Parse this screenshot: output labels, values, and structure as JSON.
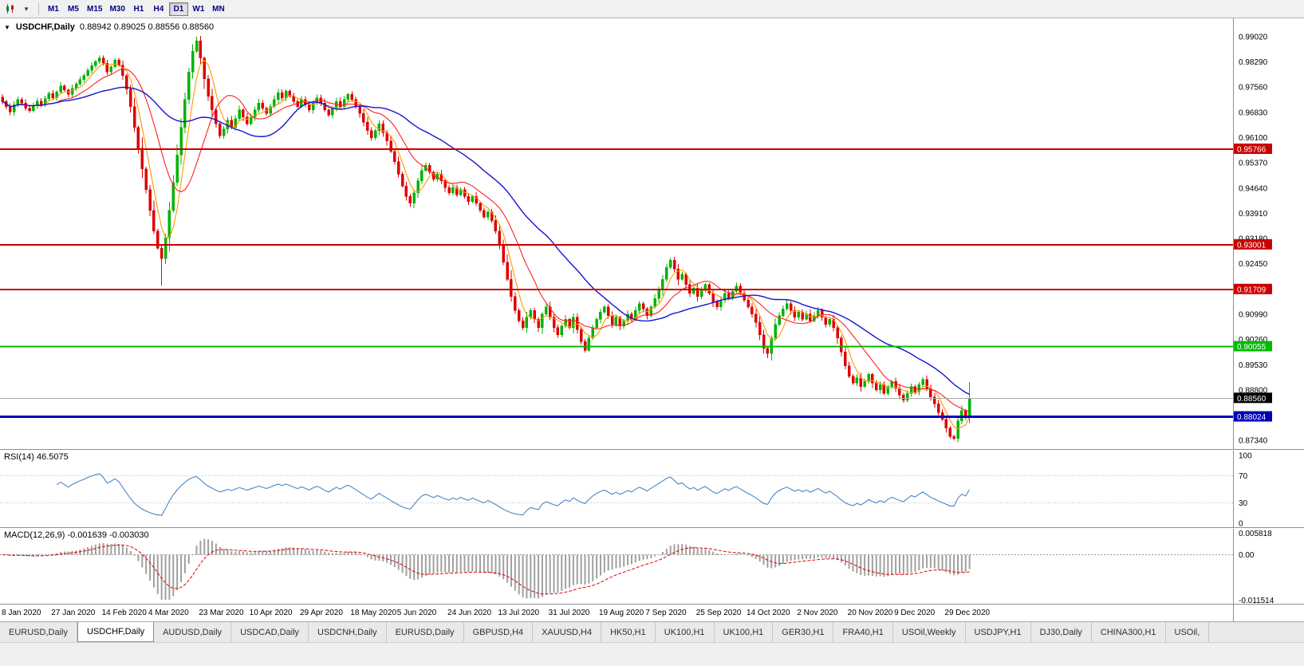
{
  "toolbar": {
    "timeframes": [
      "M1",
      "M5",
      "M15",
      "M30",
      "H1",
      "H4",
      "D1",
      "W1",
      "MN"
    ],
    "active_timeframe": "D1"
  },
  "icons": {
    "toolbar": [
      "candlestick-chart-icon",
      "caret-down-icon"
    ],
    "chart_collapse": "triangle-down-icon"
  },
  "chart_header": {
    "symbol": "USDCHF,Daily",
    "ohlc": "0.88942 0.89025 0.88556 0.88560"
  },
  "tabs": {
    "items": [
      "EURUSD,Daily",
      "USDCHF,Daily",
      "AUDUSD,Daily",
      "USDCAD,Daily",
      "USDCNH,Daily",
      "EURUSD,Daily",
      "GBPUSD,H4",
      "XAUUSD,H4",
      "HK50,H1",
      "UK100,H1",
      "UK100,H1",
      "GER30,H1",
      "FRA40,H1",
      "USOil,Weekly",
      "USDJPY,H1",
      "DJ30,Daily",
      "CHINA300,H1",
      "USOil,"
    ],
    "active_index": 1
  },
  "chart_data": {
    "type": "candlestick",
    "title": "USDCHF,Daily",
    "last_ohlc": {
      "open": 0.88942,
      "high": 0.89025,
      "low": 0.88556,
      "close": 0.8856
    },
    "price_range": [
      0.8709,
      0.9955
    ],
    "up_color": "#00b300",
    "down_color": "#dd0000",
    "y_axis_ticks": [
      "0.99020",
      "0.98290",
      "0.97560",
      "0.96830",
      "0.96100",
      "0.95370",
      "0.94640",
      "0.93910",
      "0.93180",
      "0.92450",
      "0.91720",
      "0.90990",
      "0.90260",
      "0.89530",
      "0.88800",
      "0.88070",
      "0.87340"
    ],
    "x_labels": [
      "8 Jan 2020",
      "27 Jan 2020",
      "14 Feb 2020",
      "4 Mar 2020",
      "23 Mar 2020",
      "10 Apr 2020",
      "29 Apr 2020",
      "18 May 2020",
      "5 Jun 2020",
      "24 Jun 2020",
      "13 Jul 2020",
      "31 Jul 2020",
      "19 Aug 2020",
      "7 Sep 2020",
      "25 Sep 2020",
      "14 Oct 2020",
      "2 Nov 2020",
      "20 Nov 2020",
      "9 Dec 2020",
      "29 Dec 2020"
    ],
    "closes": [
      0.9715,
      0.97,
      0.9685,
      0.9705,
      0.972,
      0.971,
      0.9695,
      0.9688,
      0.9702,
      0.9716,
      0.9705,
      0.9722,
      0.9738,
      0.9725,
      0.9742,
      0.976,
      0.9748,
      0.9735,
      0.9752,
      0.9765,
      0.9778,
      0.979,
      0.9805,
      0.9818,
      0.983,
      0.984,
      0.9825,
      0.98,
      0.9815,
      0.9835,
      0.982,
      0.979,
      0.975,
      0.97,
      0.964,
      0.958,
      0.952,
      0.946,
      0.94,
      0.934,
      0.929,
      0.926,
      0.932,
      0.94,
      0.948,
      0.956,
      0.964,
      0.972,
      0.98,
      0.986,
      0.989,
      0.984,
      0.978,
      0.973,
      0.969,
      0.965,
      0.9615,
      0.9635,
      0.966,
      0.964,
      0.9665,
      0.969,
      0.967,
      0.965,
      0.967,
      0.969,
      0.971,
      0.9695,
      0.968,
      0.97,
      0.972,
      0.974,
      0.9725,
      0.9745,
      0.973,
      0.9715,
      0.97,
      0.972,
      0.9705,
      0.969,
      0.971,
      0.9725,
      0.971,
      0.969,
      0.9675,
      0.9695,
      0.9715,
      0.97,
      0.972,
      0.9735,
      0.972,
      0.97,
      0.968,
      0.9655,
      0.963,
      0.961,
      0.963,
      0.965,
      0.9625,
      0.96,
      0.957,
      0.954,
      0.9505,
      0.947,
      0.944,
      0.942,
      0.945,
      0.9485,
      0.9515,
      0.953,
      0.951,
      0.949,
      0.9505,
      0.9485,
      0.9465,
      0.945,
      0.9465,
      0.9445,
      0.946,
      0.944,
      0.9425,
      0.944,
      0.942,
      0.94,
      0.938,
      0.9395,
      0.937,
      0.934,
      0.93,
      0.925,
      0.92,
      0.915,
      0.911,
      0.908,
      0.906,
      0.909,
      0.911,
      0.9085,
      0.906,
      0.91,
      0.912,
      0.909,
      0.906,
      0.904,
      0.9065,
      0.9085,
      0.906,
      0.909,
      0.9055,
      0.902,
      0.8995,
      0.903,
      0.906,
      0.9085,
      0.9105,
      0.912,
      0.9095,
      0.907,
      0.909,
      0.9065,
      0.908,
      0.91,
      0.9085,
      0.911,
      0.913,
      0.9115,
      0.9095,
      0.912,
      0.9145,
      0.917,
      0.92,
      0.9235,
      0.9255,
      0.923,
      0.92,
      0.9215,
      0.9185,
      0.916,
      0.9175,
      0.915,
      0.917,
      0.9185,
      0.916,
      0.9135,
      0.912,
      0.914,
      0.916,
      0.9145,
      0.9165,
      0.918,
      0.916,
      0.914,
      0.912,
      0.91,
      0.9075,
      0.904,
      0.9,
      0.8985,
      0.903,
      0.907,
      0.9095,
      0.9115,
      0.913,
      0.911,
      0.909,
      0.9105,
      0.9085,
      0.91,
      0.908,
      0.9095,
      0.911,
      0.909,
      0.907,
      0.9085,
      0.906,
      0.903,
      0.899,
      0.895,
      0.892,
      0.89,
      0.8915,
      0.889,
      0.8905,
      0.8925,
      0.89,
      0.888,
      0.8895,
      0.887,
      0.889,
      0.8905,
      0.8885,
      0.8865,
      0.885,
      0.887,
      0.889,
      0.8875,
      0.8895,
      0.891,
      0.8885,
      0.886,
      0.884,
      0.8815,
      0.8795,
      0.877,
      0.8745,
      0.874,
      0.879,
      0.882,
      0.88,
      0.8856
    ],
    "wick_high_overrides": {
      "25": 0.9848,
      "50": 0.9902,
      "172": 0.9262,
      "249": 0.8903
    },
    "wick_low_overrides": {
      "41": 0.9182,
      "150": 0.8988,
      "197": 0.8972,
      "245": 0.8734
    },
    "horizontal_levels": [
      {
        "price": 0.95766,
        "label": "0.95766",
        "color": "#cc0000",
        "width": 2
      },
      {
        "price": 0.93001,
        "label": "0.93001",
        "color": "#cc0000",
        "width": 2
      },
      {
        "price": 0.91709,
        "label": "0.91709",
        "color": "#cc0000",
        "width": 2
      },
      {
        "price": 0.90055,
        "label": "0.90055",
        "color": "#00bb00",
        "width": 2
      },
      {
        "price": 0.88024,
        "label": "0.88024",
        "color": "#0000bb",
        "width": 3
      }
    ],
    "current_price": {
      "price": 0.8856,
      "label": "0.88560",
      "badge_color": "#000000",
      "line_color": "#a8a8a8"
    },
    "moving_averages": [
      {
        "period": 5,
        "color": "#ff9900",
        "width": 1.1
      },
      {
        "period": 13,
        "color": "#ff2020",
        "width": 1.1
      },
      {
        "period": 34,
        "color": "#1414d2",
        "width": 1.4
      }
    ],
    "indicators": {
      "rsi": {
        "label": "RSI(14) 46.5075",
        "period": 14,
        "levels": [
          70,
          30
        ],
        "axis_labels": [
          "100",
          "70",
          "30",
          "0"
        ],
        "color": "#4788c8"
      },
      "macd": {
        "label": "MACD(12,26,9) -0.001639 -0.003030",
        "fast": 12,
        "slow": 26,
        "signal": 9,
        "range": [
          -0.011514,
          0.005818
        ],
        "axis_labels": [
          "0.005818",
          "0.00",
          "-0.011514"
        ],
        "histogram_color": "#a0a0a0",
        "signal_color": "#dd0000"
      }
    }
  }
}
